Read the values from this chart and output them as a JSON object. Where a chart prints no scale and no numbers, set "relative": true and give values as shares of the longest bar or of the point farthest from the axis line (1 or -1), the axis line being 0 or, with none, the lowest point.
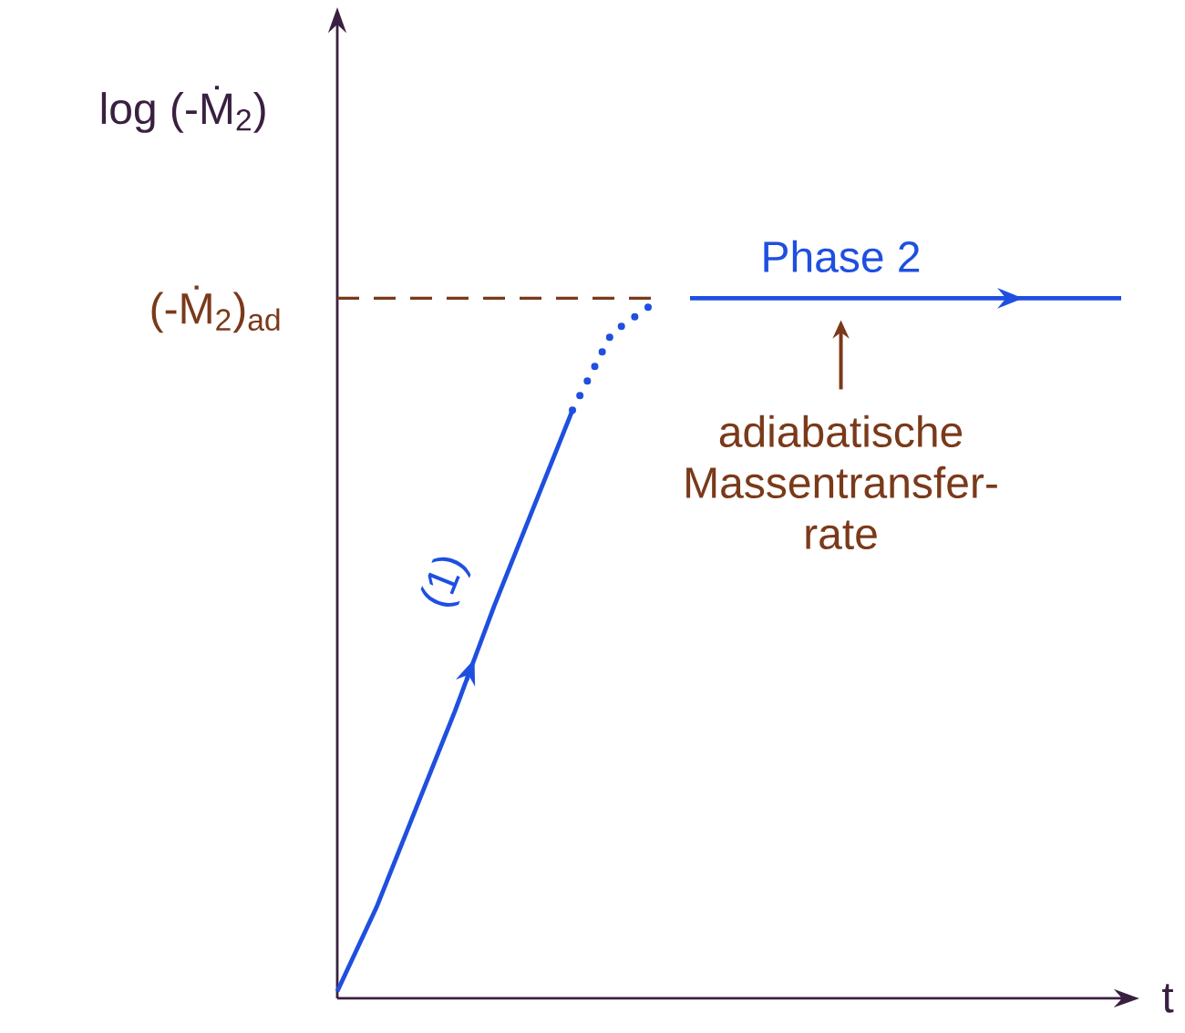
{
  "chart_data": {
    "type": "line",
    "relative": true,
    "xlabel": "t",
    "ylabel": "log (-Ṁ$_{2}$)",
    "tick_labels": false,
    "marker": "none",
    "categories": [
      null,
      null,
      null,
      null,
      null,
      null,
      null,
      null,
      null,
      null,
      null,
      null,
      null,
      null,
      null,
      null,
      null,
      null,
      null,
      null,
      null
    ],
    "series": [
      {
        "name": "(1)",
        "color": "#1f4fe0",
        "line_style": "solid",
        "values": [
          0.01,
          0.13,
          0.27,
          0.41,
          0.56,
          0.7,
          0.84,
          null,
          null,
          null,
          null,
          null,
          null,
          null,
          null,
          null,
          null,
          null,
          null,
          null,
          null
        ]
      },
      {
        "color": "#1f4fe0",
        "line_style": "dotted",
        "values": [
          null,
          null,
          null,
          null,
          null,
          null,
          0.84,
          0.95,
          0.99,
          null,
          null,
          null,
          null,
          null,
          null,
          null,
          null,
          null,
          null,
          null,
          null
        ]
      },
      {
        "name": "Phase 2",
        "color": "#1f4fe0",
        "line_style": "solid",
        "values": [
          null,
          null,
          null,
          null,
          null,
          null,
          null,
          null,
          null,
          1,
          1,
          1,
          1,
          1,
          1,
          1,
          1,
          1,
          1,
          1,
          1
        ]
      }
    ],
    "ref_lines": [
      {
        "axis": "y",
        "value": 1,
        "label": "(-Ṁ$_{2}$)$_{ad}$",
        "color": "#7a3a1a",
        "line_style": "dashed"
      }
    ],
    "annotations": [
      {
        "text": "adiabatische Massentransfer-rate",
        "y": 1
      }
    ]
  }
}
